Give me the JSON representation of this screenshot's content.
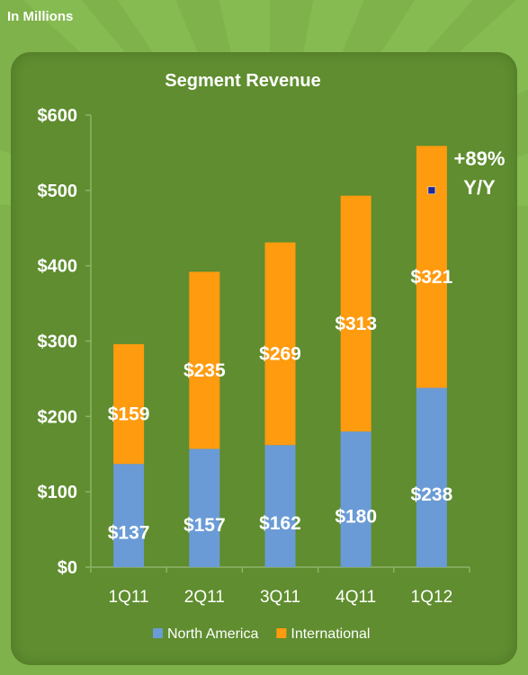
{
  "page": {
    "units_label": "In Millions",
    "background_color": "#7fb24a",
    "panel_color": "#5f8d2f"
  },
  "chart_data": {
    "type": "bar",
    "stacked": true,
    "title": "Segment Revenue",
    "categories": [
      "1Q11",
      "2Q11",
      "3Q11",
      "4Q11",
      "1Q12"
    ],
    "series": [
      {
        "name": "North America",
        "color": "#6a9bd6",
        "values": [
          137,
          157,
          162,
          180,
          238
        ],
        "labels": [
          "$137",
          "$157",
          "$162",
          "$180",
          "$238"
        ]
      },
      {
        "name": "International",
        "color": "#ff9b0f",
        "values": [
          159,
          235,
          269,
          313,
          321
        ],
        "labels": [
          "$159",
          "$235",
          "$269",
          "$313",
          "$321"
        ]
      }
    ],
    "ylim": [
      0,
      600
    ],
    "yticks": [
      0,
      100,
      200,
      300,
      400,
      500,
      600
    ],
    "ytick_labels": [
      "$0",
      "$100",
      "$200",
      "$300",
      "$400",
      "$500",
      "$600"
    ],
    "legend_position": "bottom",
    "annotation": {
      "line1": "+89%",
      "line2": "Y/Y",
      "category": "1Q12"
    },
    "marker_value": 500,
    "marker_color": "#1f2a9a"
  }
}
